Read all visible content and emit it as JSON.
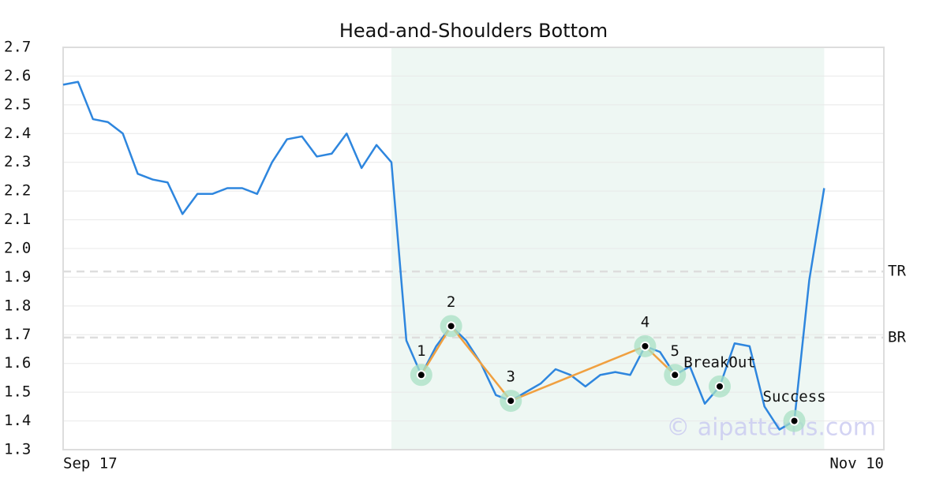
{
  "chart_data": {
    "type": "line",
    "title": "Head-and-Shoulders Bottom",
    "categories": [
      "Sep 17",
      null,
      null,
      null,
      null,
      null,
      null,
      null,
      null,
      null,
      null,
      null,
      null,
      null,
      null,
      null,
      null,
      null,
      null,
      null,
      null,
      null,
      null,
      null,
      null,
      null,
      null,
      null,
      null,
      null,
      null,
      null,
      null,
      null,
      null,
      null,
      null,
      null,
      null,
      null,
      null,
      null,
      null,
      null,
      null,
      null,
      null,
      null,
      null,
      null,
      null,
      null,
      null,
      null,
      null,
      "Nov 10"
    ],
    "values": [
      2.57,
      2.58,
      2.45,
      2.44,
      2.4,
      2.26,
      2.24,
      2.23,
      2.12,
      2.19,
      2.19,
      2.21,
      2.21,
      2.19,
      2.3,
      2.38,
      2.39,
      2.32,
      2.33,
      2.4,
      2.28,
      2.36,
      2.3,
      1.68,
      1.56,
      1.66,
      1.73,
      1.68,
      1.6,
      1.49,
      1.47,
      1.5,
      1.53,
      1.58,
      1.56,
      1.52,
      1.56,
      1.57,
      1.56,
      1.66,
      1.64,
      1.56,
      1.59,
      1.46,
      1.52,
      1.67,
      1.66,
      1.45,
      1.37,
      1.4,
      1.89,
      2.21,
      null,
      null,
      null,
      null
    ],
    "color": "#2e86de",
    "ylim": [
      1.3,
      2.7
    ],
    "yticks": [
      1.3,
      1.4,
      1.5,
      1.6,
      1.7,
      1.8,
      1.9,
      {
        "value": 2,
        "label": "2.0"
      },
      2.1,
      2.2,
      2.3,
      2.4,
      2.5,
      2.6,
      2.7
    ],
    "grid": true,
    "highlight_range": [
      22,
      51
    ],
    "pattern": {
      "color": "#f0a040",
      "points": [
        {
          "index": 24,
          "value": 1.56,
          "label": "1"
        },
        {
          "index": 26,
          "value": 1.73,
          "label": "2"
        },
        {
          "index": 30,
          "value": 1.47,
          "label": "3"
        },
        {
          "index": 39,
          "value": 1.66,
          "label": "4"
        },
        {
          "index": 41,
          "value": 1.56,
          "label": "5"
        }
      ]
    },
    "signals": [
      {
        "index": 44,
        "value": 1.52,
        "label": "BreakOut"
      },
      {
        "index": 49,
        "value": 1.4,
        "label": "Success"
      }
    ],
    "levels": [
      {
        "label": "TR",
        "value": 1.92
      },
      {
        "label": "BR",
        "value": 1.69
      }
    ],
    "watermark": "© aipatterns.com"
  }
}
